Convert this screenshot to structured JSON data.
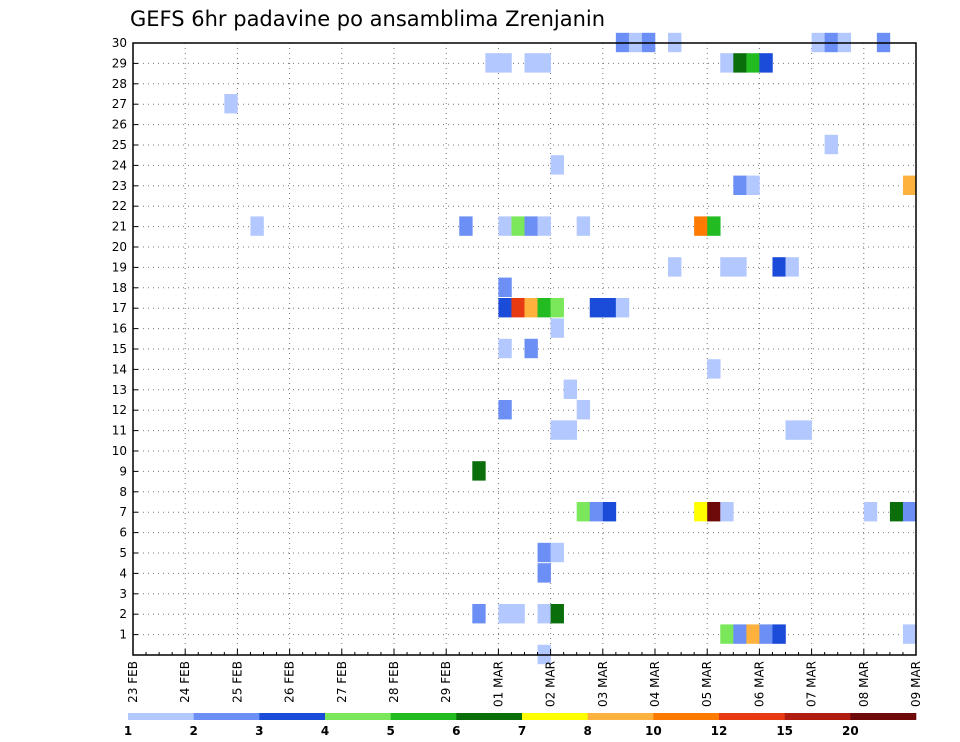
{
  "chart_data": {
    "type": "heatmap",
    "title": "GEFS 6hr padavine po ansamblima Zrenjanin",
    "x_tick_labels": [
      "23 FEB",
      "24 FEB",
      "25 FEB",
      "26 FEB",
      "27 FEB",
      "28 FEB",
      "29 FEB",
      "01 MAR",
      "02 MAR",
      "03 MAR",
      "04 MAR",
      "05 MAR",
      "06 MAR",
      "07 MAR",
      "08 MAR",
      "09 MAR"
    ],
    "y_tick_labels": [
      "1",
      "2",
      "3",
      "4",
      "5",
      "6",
      "7",
      "8",
      "9",
      "10",
      "11",
      "12",
      "13",
      "14",
      "15",
      "16",
      "17",
      "18",
      "19",
      "20",
      "21",
      "22",
      "23",
      "24",
      "25",
      "26",
      "27",
      "28",
      "29",
      "30"
    ],
    "xlim_days": [
      0,
      15
    ],
    "ylim": [
      0,
      30
    ],
    "grid": true,
    "colorbar": {
      "labels": [
        "1",
        "2",
        "3",
        "4",
        "5",
        "6",
        "7",
        "8",
        "10",
        "12",
        "15",
        "20"
      ],
      "colors": [
        "#b3c8ff",
        "#6b8ff5",
        "#1a4bd9",
        "#7ae85a",
        "#22bb22",
        "#0a6e0a",
        "#ffff00",
        "#ffb13d",
        "#ff7a00",
        "#e83a12",
        "#b01c10",
        "#6e0a0a"
      ]
    },
    "cells": [
      {
        "member": 30,
        "day": 9.25,
        "level": 2
      },
      {
        "member": 30,
        "day": 9.5,
        "level": 1
      },
      {
        "member": 30,
        "day": 9.75,
        "level": 2
      },
      {
        "member": 30,
        "day": 10.25,
        "level": 1
      },
      {
        "member": 30,
        "day": 13.0,
        "level": 1
      },
      {
        "member": 30,
        "day": 13.25,
        "level": 2
      },
      {
        "member": 30,
        "day": 13.5,
        "level": 1
      },
      {
        "member": 30,
        "day": 14.25,
        "level": 2
      },
      {
        "member": 29,
        "day": 6.75,
        "level": 1
      },
      {
        "member": 29,
        "day": 7.0,
        "level": 1
      },
      {
        "member": 29,
        "day": 7.5,
        "level": 1
      },
      {
        "member": 29,
        "day": 7.75,
        "level": 1
      },
      {
        "member": 29,
        "day": 11.25,
        "level": 1
      },
      {
        "member": 29,
        "day": 11.5,
        "level": 6
      },
      {
        "member": 29,
        "day": 11.75,
        "level": 5
      },
      {
        "member": 29,
        "day": 12.0,
        "level": 3
      },
      {
        "member": 27,
        "day": 1.75,
        "level": 1
      },
      {
        "member": 25,
        "day": 13.25,
        "level": 1
      },
      {
        "member": 24,
        "day": 8.0,
        "level": 1
      },
      {
        "member": 23,
        "day": 11.5,
        "level": 2
      },
      {
        "member": 23,
        "day": 11.75,
        "level": 1
      },
      {
        "member": 23,
        "day": 14.75,
        "level": 8
      },
      {
        "member": 21,
        "day": 2.25,
        "level": 1
      },
      {
        "member": 21,
        "day": 6.25,
        "level": 2
      },
      {
        "member": 21,
        "day": 7.0,
        "level": 1
      },
      {
        "member": 21,
        "day": 7.25,
        "level": 4
      },
      {
        "member": 21,
        "day": 7.5,
        "level": 2
      },
      {
        "member": 21,
        "day": 7.75,
        "level": 1
      },
      {
        "member": 21,
        "day": 8.5,
        "level": 1
      },
      {
        "member": 21,
        "day": 10.75,
        "level": 9
      },
      {
        "member": 21,
        "day": 11.0,
        "level": 5
      },
      {
        "member": 19,
        "day": 10.25,
        "level": 1
      },
      {
        "member": 19,
        "day": 11.25,
        "level": 1
      },
      {
        "member": 19,
        "day": 11.5,
        "level": 1
      },
      {
        "member": 19,
        "day": 12.25,
        "level": 3
      },
      {
        "member": 19,
        "day": 12.5,
        "level": 1
      },
      {
        "member": 18,
        "day": 7.0,
        "level": 2
      },
      {
        "member": 17,
        "day": 7.0,
        "level": 3
      },
      {
        "member": 17,
        "day": 7.25,
        "level": 10
      },
      {
        "member": 17,
        "day": 7.5,
        "level": 8
      },
      {
        "member": 17,
        "day": 7.75,
        "level": 5
      },
      {
        "member": 17,
        "day": 8.0,
        "level": 4
      },
      {
        "member": 17,
        "day": 8.75,
        "level": 3
      },
      {
        "member": 17,
        "day": 9.0,
        "level": 3
      },
      {
        "member": 17,
        "day": 9.25,
        "level": 1
      },
      {
        "member": 16,
        "day": 8.0,
        "level": 1
      },
      {
        "member": 15,
        "day": 7.0,
        "level": 1
      },
      {
        "member": 15,
        "day": 7.5,
        "level": 2
      },
      {
        "member": 14,
        "day": 11.0,
        "level": 1
      },
      {
        "member": 13,
        "day": 8.25,
        "level": 1
      },
      {
        "member": 12,
        "day": 7.0,
        "level": 2
      },
      {
        "member": 12,
        "day": 8.5,
        "level": 1
      },
      {
        "member": 11,
        "day": 8.0,
        "level": 1
      },
      {
        "member": 11,
        "day": 8.25,
        "level": 1
      },
      {
        "member": 11,
        "day": 12.5,
        "level": 1
      },
      {
        "member": 11,
        "day": 12.75,
        "level": 1
      },
      {
        "member": 9,
        "day": 6.5,
        "level": 6
      },
      {
        "member": 7,
        "day": 8.5,
        "level": 4
      },
      {
        "member": 7,
        "day": 8.75,
        "level": 2
      },
      {
        "member": 7,
        "day": 9.0,
        "level": 3
      },
      {
        "member": 7,
        "day": 10.75,
        "level": 7
      },
      {
        "member": 7,
        "day": 11.0,
        "level": 12
      },
      {
        "member": 7,
        "day": 11.25,
        "level": 1
      },
      {
        "member": 7,
        "day": 14.0,
        "level": 1
      },
      {
        "member": 7,
        "day": 14.5,
        "level": 6
      },
      {
        "member": 7,
        "day": 14.75,
        "level": 2
      },
      {
        "member": 5,
        "day": 7.75,
        "level": 2
      },
      {
        "member": 5,
        "day": 8.0,
        "level": 1
      },
      {
        "member": 4,
        "day": 7.75,
        "level": 2
      },
      {
        "member": 2,
        "day": 6.5,
        "level": 2
      },
      {
        "member": 2,
        "day": 7.0,
        "level": 1
      },
      {
        "member": 2,
        "day": 7.25,
        "level": 1
      },
      {
        "member": 2,
        "day": 7.75,
        "level": 1
      },
      {
        "member": 2,
        "day": 8.0,
        "level": 6
      },
      {
        "member": 1,
        "day": 11.25,
        "level": 4
      },
      {
        "member": 1,
        "day": 11.5,
        "level": 2
      },
      {
        "member": 1,
        "day": 11.75,
        "level": 8
      },
      {
        "member": 1,
        "day": 12.0,
        "level": 2
      },
      {
        "member": 1,
        "day": 12.25,
        "level": 3
      },
      {
        "member": 1,
        "day": 14.75,
        "level": 1
      },
      {
        "member": 0,
        "day": 7.75,
        "level": 1
      }
    ]
  }
}
